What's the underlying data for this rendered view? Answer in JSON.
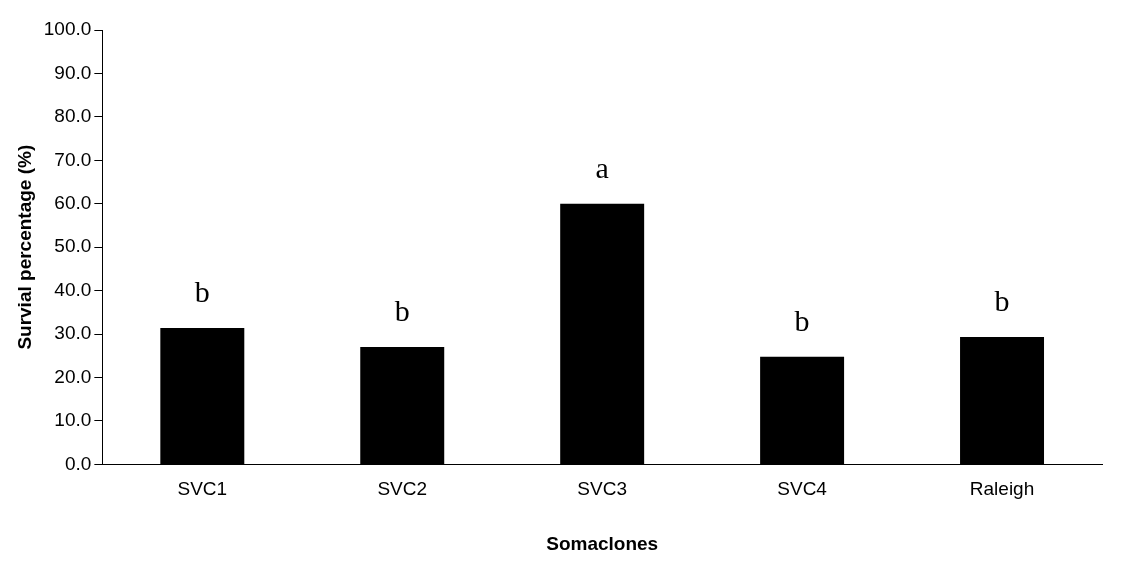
{
  "chart_data": {
    "type": "bar",
    "xlabel": "Somaclones",
    "ylabel": "Survial percentage (%)",
    "categories": [
      "SVC1",
      "SVC2",
      "SVC3",
      "SVC4",
      "Raleigh"
    ],
    "values": [
      31.4,
      27.0,
      60.0,
      24.8,
      29.3
    ],
    "color": "#000000",
    "ylim": [
      0,
      100
    ],
    "yticks": [
      {
        "value": 0,
        "label": "0.0"
      },
      {
        "value": 10,
        "label": "10.0"
      },
      {
        "value": 20,
        "label": "20.0"
      },
      {
        "value": 30,
        "label": "30.0"
      },
      {
        "value": 40,
        "label": "40.0"
      },
      {
        "value": 50,
        "label": "50.0"
      },
      {
        "value": 60,
        "label": "60.0"
      },
      {
        "value": 70,
        "label": "70.0"
      },
      {
        "value": 80,
        "label": "80.0"
      },
      {
        "value": 90,
        "label": "90.0"
      },
      {
        "value": 100,
        "label": "100.0"
      }
    ],
    "grid": false,
    "legend": false,
    "annotations": [
      "b",
      "b",
      "a",
      "b",
      "b"
    ]
  }
}
